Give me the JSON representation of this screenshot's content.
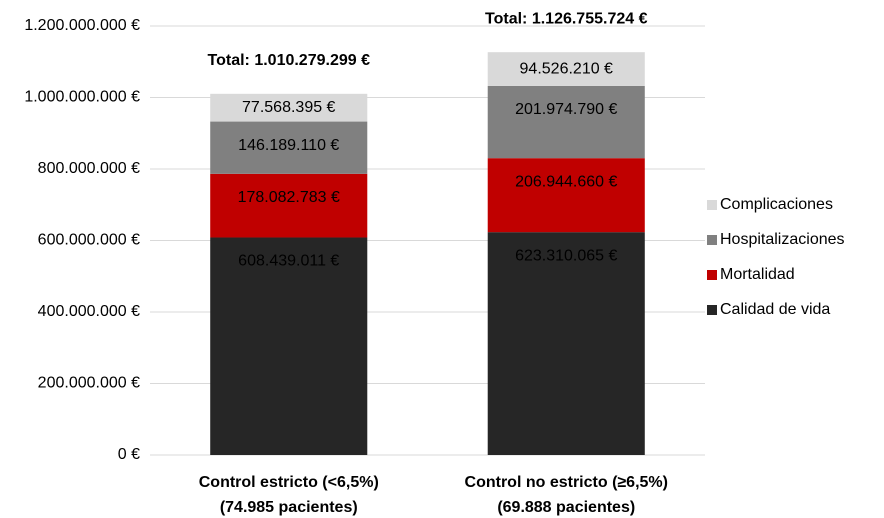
{
  "chart_data": {
    "type": "stacked_bar",
    "categories": [
      "Control estricto (<6,5%)",
      "Control no estricto (≥6,5%)"
    ],
    "category_subtitles": [
      "(74.985 pacientes)",
      "(69.888 pacientes)"
    ],
    "total_labels": [
      "Total:  1.010.279.299 €",
      "Total:  1.126.755.724 €"
    ],
    "series": [
      {
        "name": "Calidad de vida",
        "color": "#262626",
        "values": [
          608439011,
          623310065
        ],
        "value_labels": [
          "608.439.011 €",
          "623.310.065 €"
        ]
      },
      {
        "name": "Mortalidad",
        "color": "#c00000",
        "values": [
          178082783,
          206944660
        ],
        "value_labels": [
          "178.082.783 €",
          "206.944.660 €"
        ]
      },
      {
        "name": "Hospitalizaciones",
        "color": "#808080",
        "values": [
          146189110,
          201974790
        ],
        "value_labels": [
          "146.189.110 €",
          "201.974.790 €"
        ]
      },
      {
        "name": "Complicaciones",
        "color": "#d9d9d9",
        "values": [
          77568395,
          94526210
        ],
        "value_labels": [
          "77.568.395 €",
          "94.526.210 €"
        ]
      }
    ],
    "ylim": [
      0,
      1200000000
    ],
    "yticks": [
      {
        "value": 0,
        "label": "0 €"
      },
      {
        "value": 200000000,
        "label": "200.000.000 €"
      },
      {
        "value": 400000000,
        "label": "400.000.000 €"
      },
      {
        "value": 600000000,
        "label": "600.000.000 €"
      },
      {
        "value": 800000000,
        "label": "800.000.000 €"
      },
      {
        "value": 1000000000,
        "label": "1.000.000.000 €"
      },
      {
        "value": 1200000000,
        "label": "1.200.000.000 €"
      }
    ],
    "grid": true,
    "legend": "right"
  }
}
